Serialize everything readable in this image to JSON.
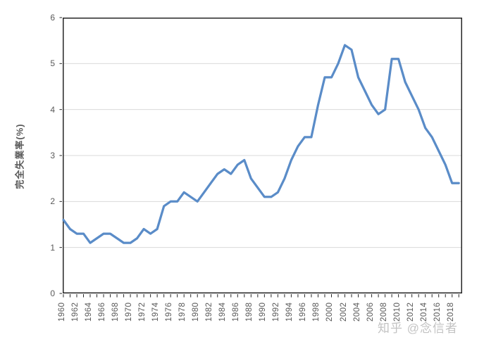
{
  "watermark": {
    "text": "知乎 @念信者"
  },
  "chart_data": {
    "type": "line",
    "title": "",
    "xlabel": "",
    "ylabel": "完全失業率(%)",
    "ylim": [
      0,
      6
    ],
    "y_ticks": [
      0,
      1,
      2,
      3,
      4,
      5,
      6
    ],
    "grid": "horizontal-only",
    "legend": "none",
    "x": [
      1960,
      1961,
      1962,
      1963,
      1964,
      1965,
      1966,
      1967,
      1968,
      1969,
      1970,
      1971,
      1972,
      1973,
      1974,
      1975,
      1976,
      1977,
      1978,
      1979,
      1980,
      1981,
      1982,
      1983,
      1984,
      1985,
      1986,
      1987,
      1988,
      1989,
      1990,
      1991,
      1992,
      1993,
      1994,
      1995,
      1996,
      1997,
      1998,
      1999,
      2000,
      2001,
      2002,
      2003,
      2004,
      2005,
      2006,
      2007,
      2008,
      2009,
      2010,
      2011,
      2012,
      2013,
      2014,
      2015,
      2016,
      2017,
      2018,
      2019
    ],
    "x_label_years": [
      1960,
      1962,
      1964,
      1966,
      1968,
      1970,
      1972,
      1974,
      1976,
      1978,
      1980,
      1982,
      1984,
      1986,
      1988,
      1990,
      1992,
      1994,
      1996,
      1998,
      2000,
      2002,
      2004,
      2006,
      2008,
      2010,
      2012,
      2014,
      2016,
      2018
    ],
    "series": [
      {
        "name": "完全失業率",
        "values": [
          1.6,
          1.4,
          1.3,
          1.3,
          1.1,
          1.2,
          1.3,
          1.3,
          1.2,
          1.1,
          1.1,
          1.2,
          1.4,
          1.3,
          1.4,
          1.9,
          2.0,
          2.0,
          2.2,
          2.1,
          2.0,
          2.2,
          2.4,
          2.6,
          2.7,
          2.6,
          2.8,
          2.9,
          2.5,
          2.3,
          2.1,
          2.1,
          2.2,
          2.5,
          2.9,
          3.2,
          3.4,
          3.4,
          4.1,
          4.7,
          4.7,
          5.0,
          5.4,
          5.3,
          4.7,
          4.4,
          4.1,
          3.9,
          4.0,
          5.1,
          5.1,
          4.6,
          4.3,
          4.0,
          3.6,
          3.4,
          3.1,
          2.8,
          2.4,
          2.4
        ]
      }
    ],
    "colors": {
      "line": "#5a8cc8",
      "gridline": "#d9d9d9",
      "axis_border": "#262626",
      "tick": "#262626",
      "tick_label": "#595959",
      "watermark": "#c3c3c3"
    }
  }
}
